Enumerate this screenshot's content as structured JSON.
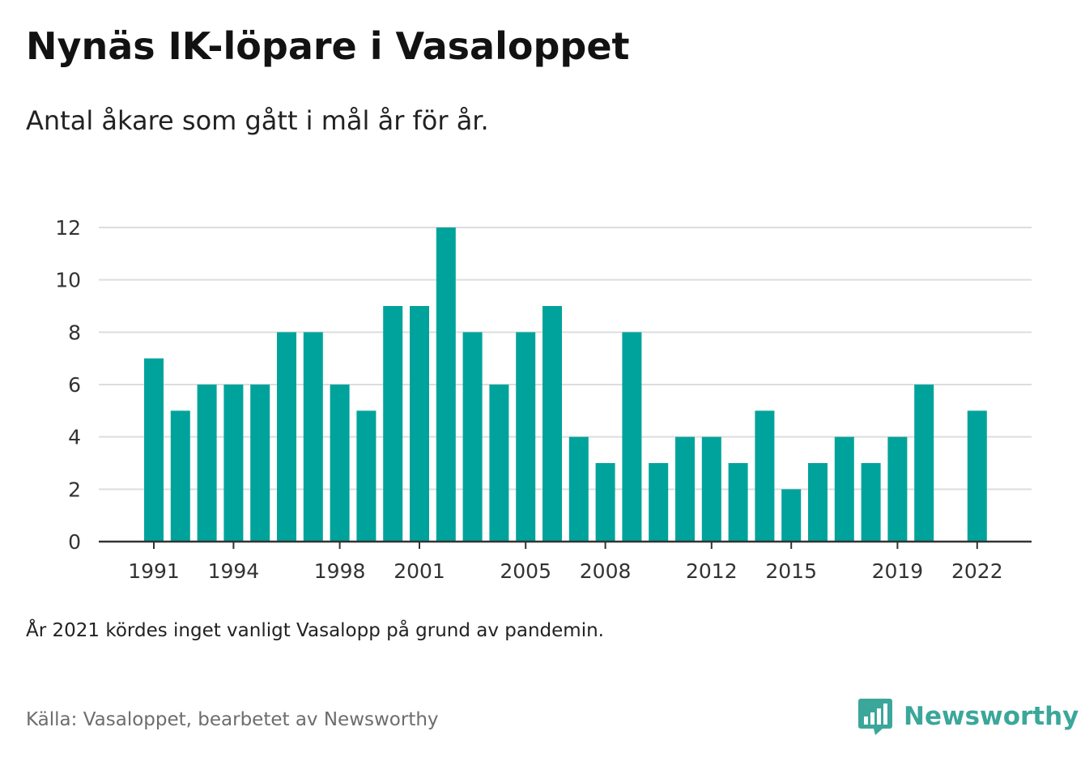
{
  "header": {
    "title": "Nynäs IK-löpare i Vasaloppet",
    "subtitle": "Antal åkare som gått i mål år för år."
  },
  "footer": {
    "note": "År 2021 kördes inget vanligt Vasalopp på grund av pandemin.",
    "source": "Källa: Vasaloppet, bearbetet av Newsworthy",
    "brand": "Newsworthy",
    "brand_icon": "bar-chart-speech-bubble-icon"
  },
  "colors": {
    "bar": "#00a39b",
    "grid": "#dddddd",
    "axis": "#333333",
    "brand": "#3aa79a"
  },
  "chart_data": {
    "type": "bar",
    "title": "Nynäs IK-löpare i Vasaloppet",
    "subtitle": "Antal åkare som gått i mål år för år.",
    "xlabel": "",
    "ylabel": "",
    "x": [
      1991,
      1992,
      1993,
      1994,
      1995,
      1996,
      1997,
      1998,
      1999,
      2000,
      2001,
      2002,
      2003,
      2004,
      2005,
      2006,
      2007,
      2008,
      2009,
      2010,
      2011,
      2012,
      2013,
      2014,
      2015,
      2016,
      2017,
      2018,
      2019,
      2020,
      2021,
      2022
    ],
    "values": [
      7,
      5,
      6,
      6,
      6,
      8,
      8,
      6,
      5,
      9,
      9,
      12,
      8,
      6,
      8,
      9,
      4,
      3,
      8,
      3,
      4,
      4,
      3,
      5,
      2,
      3,
      4,
      3,
      4,
      6,
      null,
      5
    ],
    "x_ticks": [
      1991,
      1994,
      1998,
      2001,
      2005,
      2008,
      2012,
      2015,
      2019,
      2022
    ],
    "y_ticks": [
      0,
      2,
      4,
      6,
      8,
      10,
      12
    ],
    "ylim": [
      0,
      12
    ],
    "grid": true,
    "legend": false
  }
}
